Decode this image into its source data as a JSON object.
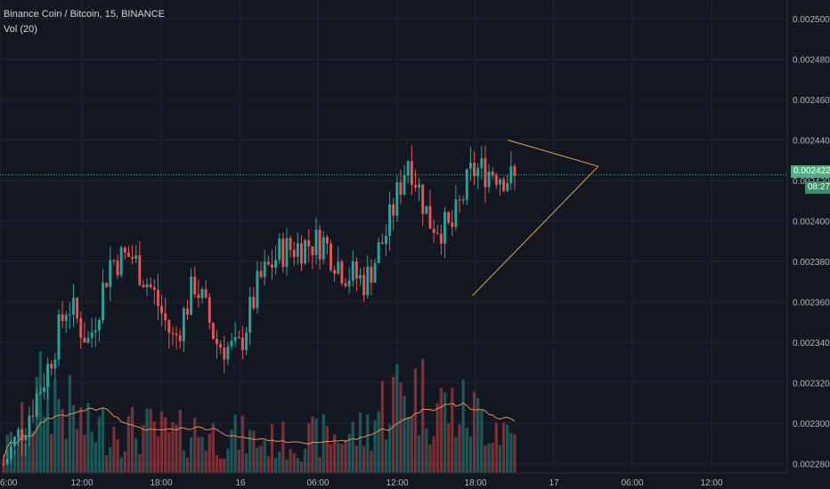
{
  "header": {
    "symbol_line": "Binance Coin / Bitcoin, 15, BINANCE",
    "volume_line": "Vol (20)"
  },
  "price_axis": {
    "ticks": [
      "0.0025000",
      "0.0024800",
      "0.0024600",
      "0.0024400",
      "0.0024200",
      "0.0024000",
      "0.0023800",
      "0.0023600",
      "0.0023400",
      "0.0023200",
      "0.0023000",
      "0.0022800"
    ],
    "last_price": "0.0024228",
    "countdown": "08:27"
  },
  "time_axis": {
    "ticks": [
      "6:00",
      "12:00",
      "18:00",
      "16",
      "06:00",
      "12:00",
      "18:00",
      "17",
      "06:00",
      "12:00"
    ]
  },
  "colors": {
    "background": "#131722",
    "grid": "#1e2433",
    "up": "#26a69a",
    "down": "#ef5350",
    "trendline": "#f0a040",
    "last_price": "#4caf80",
    "volume_ma": "#ef8a50"
  },
  "chart_data": {
    "type": "candlestick",
    "symbol": "BNB/BTC",
    "interval": "15",
    "exchange": "BINANCE",
    "ylim": [
      0.002277,
      0.002513
    ],
    "last_price": 0.0024228,
    "ohlc_segments": [
      {
        "price": 0.00228,
        "vol": 0.2
      },
      {
        "price": 0.0023,
        "vol": 0.45
      },
      {
        "price": 0.002325,
        "vol": 0.85
      },
      {
        "price": 0.00236,
        "vol": 0.6
      },
      {
        "price": 0.00234,
        "vol": 0.4
      },
      {
        "price": 0.00238,
        "vol": 0.45
      },
      {
        "price": 0.002383,
        "vol": 0.4
      },
      {
        "price": 0.002365,
        "vol": 0.4
      },
      {
        "price": 0.00234,
        "vol": 0.35
      },
      {
        "price": 0.00237,
        "vol": 0.4
      },
      {
        "price": 0.00234,
        "vol": 0.35
      },
      {
        "price": 0.002335,
        "vol": 0.35
      },
      {
        "price": 0.00237,
        "vol": 0.3
      },
      {
        "price": 0.002385,
        "vol": 0.3
      },
      {
        "price": 0.002388,
        "vol": 0.3
      },
      {
        "price": 0.00239,
        "vol": 0.35
      },
      {
        "price": 0.002375,
        "vol": 0.35
      },
      {
        "price": 0.00237,
        "vol": 0.4
      },
      {
        "price": 0.002395,
        "vol": 0.7
      },
      {
        "price": 0.002432,
        "vol": 0.8
      },
      {
        "price": 0.0024,
        "vol": 0.7
      },
      {
        "price": 0.002395,
        "vol": 0.6
      },
      {
        "price": 0.002425,
        "vol": 0.55
      },
      {
        "price": 0.002425,
        "vol": 0.5
      },
      {
        "price": 0.00242,
        "vol": 0.35
      }
    ],
    "annotations": [
      {
        "type": "trendline",
        "from": {
          "time_index": 0.645,
          "price": 0.00244
        },
        "to": {
          "time_index": 0.76,
          "price": 0.002427
        }
      },
      {
        "type": "trendline",
        "from": {
          "time_index": 0.6,
          "price": 0.002363
        },
        "to": {
          "time_index": 0.76,
          "price": 0.002427
        }
      }
    ],
    "indicators": [
      {
        "name": "Vol",
        "length": 20
      }
    ]
  }
}
